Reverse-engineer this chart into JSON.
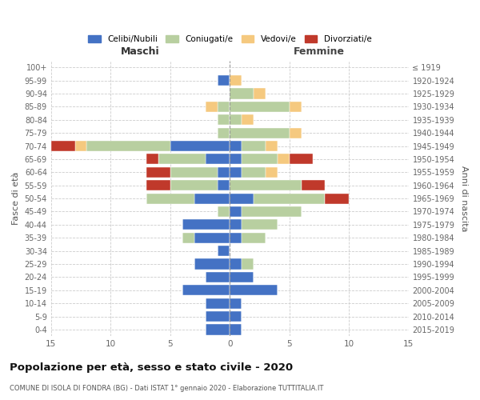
{
  "age_groups": [
    "0-4",
    "5-9",
    "10-14",
    "15-19",
    "20-24",
    "25-29",
    "30-34",
    "35-39",
    "40-44",
    "45-49",
    "50-54",
    "55-59",
    "60-64",
    "65-69",
    "70-74",
    "75-79",
    "80-84",
    "85-89",
    "90-94",
    "95-99",
    "100+"
  ],
  "birth_years": [
    "2015-2019",
    "2010-2014",
    "2005-2009",
    "2000-2004",
    "1995-1999",
    "1990-1994",
    "1985-1989",
    "1980-1984",
    "1975-1979",
    "1970-1974",
    "1965-1969",
    "1960-1964",
    "1955-1959",
    "1950-1954",
    "1945-1949",
    "1940-1944",
    "1935-1939",
    "1930-1934",
    "1925-1929",
    "1920-1924",
    "≤ 1919"
  ],
  "males": {
    "celibi": [
      2,
      2,
      2,
      4,
      2,
      3,
      1,
      3,
      4,
      0,
      3,
      1,
      1,
      2,
      5,
      0,
      0,
      0,
      0,
      1,
      0
    ],
    "coniugati": [
      0,
      0,
      0,
      0,
      0,
      0,
      0,
      1,
      0,
      1,
      4,
      4,
      4,
      4,
      7,
      1,
      1,
      1,
      0,
      0,
      0
    ],
    "vedovi": [
      0,
      0,
      0,
      0,
      0,
      0,
      0,
      0,
      0,
      0,
      0,
      0,
      0,
      0,
      1,
      0,
      0,
      1,
      0,
      0,
      0
    ],
    "divorziati": [
      0,
      0,
      0,
      0,
      0,
      0,
      0,
      0,
      0,
      0,
      0,
      2,
      2,
      1,
      2,
      0,
      0,
      0,
      0,
      0,
      0
    ]
  },
  "females": {
    "nubili": [
      1,
      1,
      1,
      4,
      2,
      1,
      0,
      1,
      1,
      1,
      2,
      0,
      1,
      1,
      1,
      0,
      0,
      0,
      0,
      0,
      0
    ],
    "coniugate": [
      0,
      0,
      0,
      0,
      0,
      1,
      0,
      2,
      3,
      5,
      6,
      6,
      2,
      3,
      2,
      5,
      1,
      5,
      2,
      0,
      0
    ],
    "vedove": [
      0,
      0,
      0,
      0,
      0,
      0,
      0,
      0,
      0,
      0,
      0,
      0,
      1,
      1,
      1,
      1,
      1,
      1,
      1,
      1,
      0
    ],
    "divorziate": [
      0,
      0,
      0,
      0,
      0,
      0,
      0,
      0,
      0,
      0,
      2,
      2,
      0,
      2,
      0,
      0,
      0,
      0,
      0,
      0,
      0
    ]
  },
  "colors": {
    "celibi_nubili": "#4472c4",
    "coniugati": "#b8cfa0",
    "vedovi": "#f5c97f",
    "divorziati": "#c0392b"
  },
  "xlim": 15,
  "title": "Popolazione per età, sesso e stato civile - 2020",
  "subtitle": "COMUNE DI ISOLA DI FONDRA (BG) - Dati ISTAT 1° gennaio 2020 - Elaborazione TUTTITALIA.IT",
  "xlabel_left": "Maschi",
  "xlabel_right": "Femmine",
  "ylabel": "Fasce di età",
  "ylabel_right": "Anni di nascita",
  "legend_labels": [
    "Celibi/Nubili",
    "Coniugati/e",
    "Vedovi/e",
    "Divorziati/e"
  ],
  "background_color": "#ffffff",
  "grid_color": "#cccccc"
}
